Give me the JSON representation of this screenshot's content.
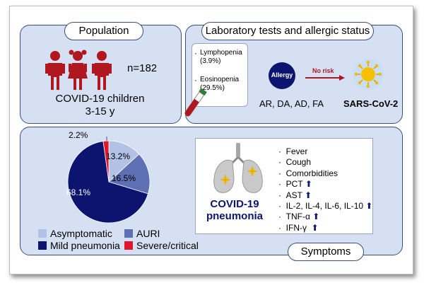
{
  "colors": {
    "panel_bg": "#d6e0f3",
    "panel_border": "#3a4f7a",
    "figure_red": "#b0171f",
    "allergy_navy": "#0c1470",
    "asymptomatic": "#b3c1e6",
    "auri": "#5f6fb3",
    "mild": "#0c1470",
    "severe": "#e0162b"
  },
  "population": {
    "title": "Population",
    "n_label": "n=182",
    "desc_line1": "COVID-19 children",
    "desc_line2": "3-15 y"
  },
  "lab": {
    "title": "Laboratory tests and allergic status",
    "lymphopenia": "Lymphopenia",
    "lymphopenia_pct": "(3.9%)",
    "eosinopenia": "Eosinopenia",
    "eosinopenia_pct": "(29.5%)",
    "allergy_label": "Allergy",
    "no_risk_label": "No risk",
    "allergy_types": "AR, DA, AD, FA",
    "virus_label": "SARS-CoV-2"
  },
  "chart_data": {
    "type": "pie",
    "slices": [
      {
        "name": "Asymptomatic",
        "value": 13.2,
        "label": "13.2%"
      },
      {
        "name": "AURI",
        "value": 16.5,
        "label": "16.5%"
      },
      {
        "name": "Mild pneumonia",
        "value": 68.1,
        "label": "68.1%"
      },
      {
        "name": "Severe/critical",
        "value": 2.2,
        "label": "2.2%"
      }
    ],
    "legend": [
      "Asymptomatic",
      "AURI",
      "Mild pneumonia",
      "Severe/critical"
    ],
    "legend_position": "bottom"
  },
  "symptoms": {
    "title": "Symptoms",
    "pneumonia_line1": "COVID-19",
    "pneumonia_line2": "pneumonia",
    "bullet": "·",
    "items": [
      "Fever",
      "Cough",
      "Comorbidities",
      "PCT",
      "AST",
      "IL-2, IL-4, IL-6, IL-10",
      "TNF-α",
      "IFN-γ"
    ],
    "up_arrow": "⬆"
  }
}
